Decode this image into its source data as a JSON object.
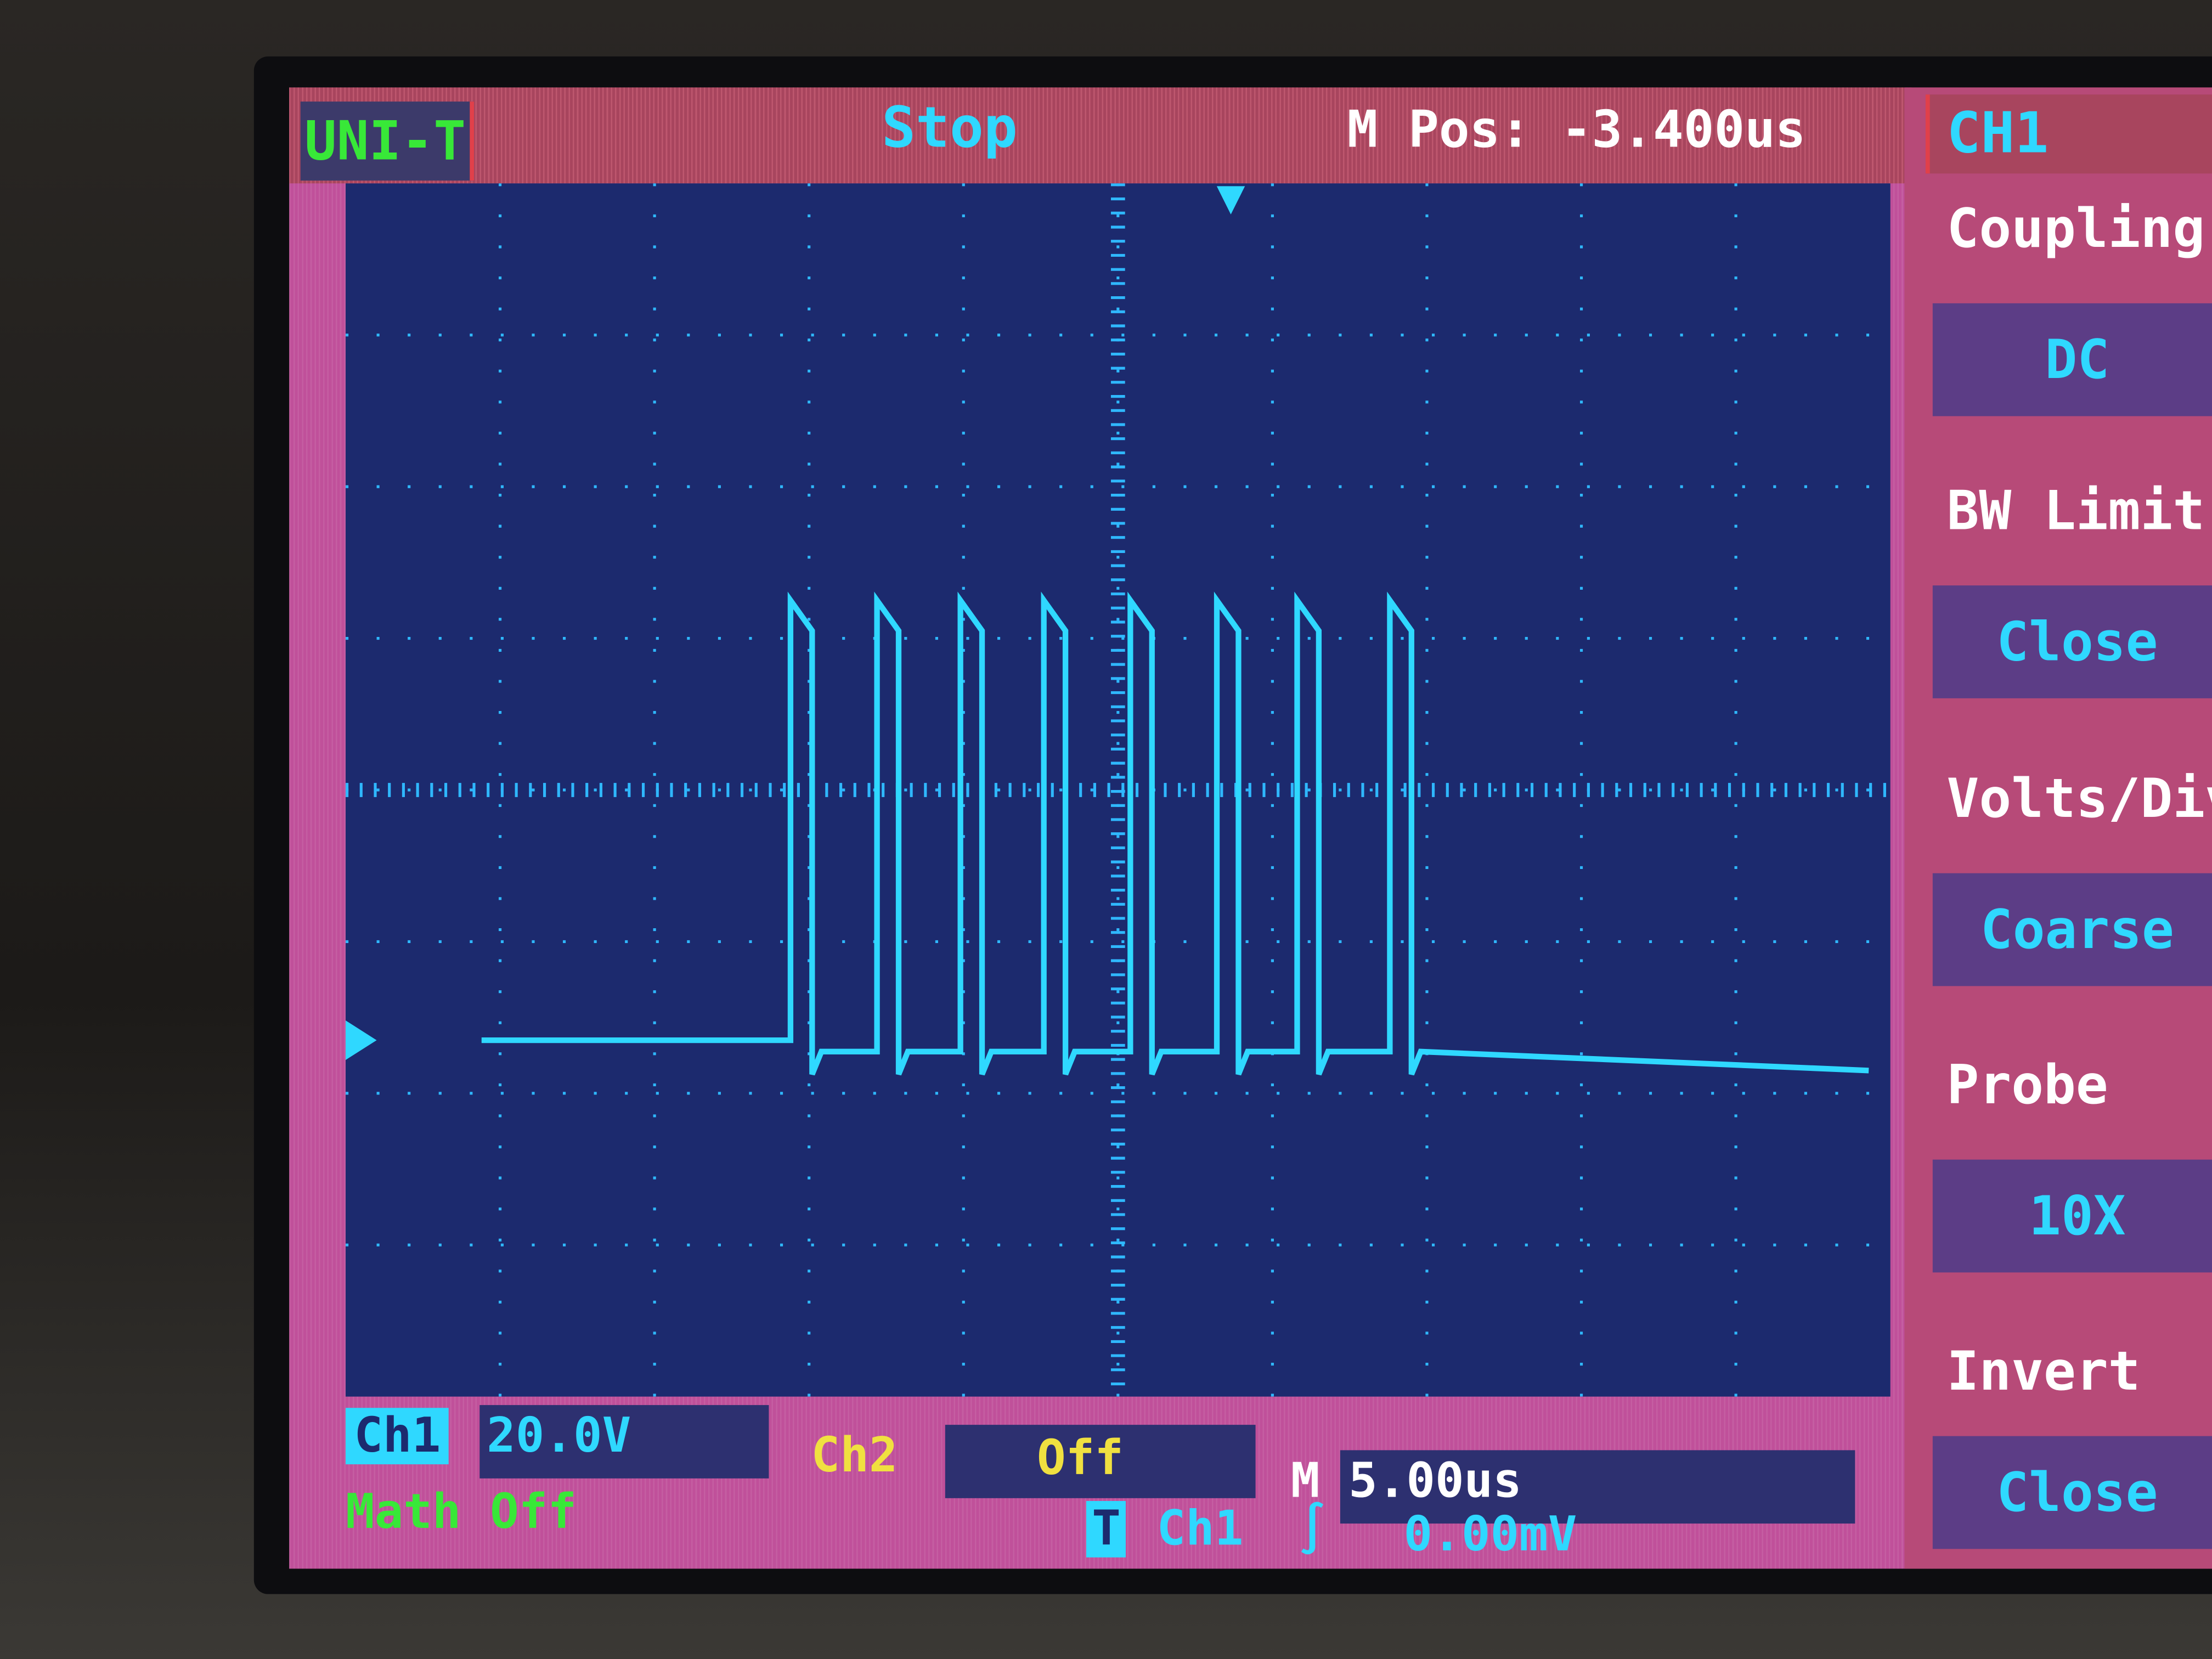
{
  "top_bar": {
    "brand": "UNI-T",
    "run_state": "Stop",
    "main_position": "M Pos: -3.400us"
  },
  "menu": {
    "title": "CH1",
    "items": [
      {
        "label": "Coupling",
        "value": "DC"
      },
      {
        "label": "BW Limit",
        "value": "Close"
      },
      {
        "label": "Volts/Div",
        "value": "Coarse"
      },
      {
        "label": "Probe",
        "value": "10X"
      },
      {
        "label": "Invert",
        "value": "Close"
      }
    ]
  },
  "status": {
    "ch1_label": "Ch1",
    "ch1_scale": "20.0V",
    "ch2_label": "Ch2",
    "ch2_scale": "Off",
    "timebase": "M 5.00us",
    "math": "Math Off",
    "trigger_icon": "T",
    "trigger_source": "Ch1",
    "trigger_slope": "rising-edge-icon",
    "trigger_level": "0.00mV"
  },
  "colors": {
    "ch1": "#2fd8ff",
    "ch2": "#f0e040",
    "math": "#38e838",
    "grid_bg": "#1c2a6e",
    "frame": "#c0509a"
  },
  "chart_data": {
    "type": "line",
    "divisions_x": 10,
    "divisions_y": 8,
    "time_per_div_us": 5,
    "volts_per_div": 20,
    "series": [
      {
        "channel": "CH1",
        "pulses_rise_us": [
          14.4,
          17.2,
          19.9,
          22.6,
          25.4,
          28.2,
          30.8,
          33.8
        ],
        "pulse_width_us": 0.7,
        "high_v": 58,
        "low_v_between": -1.5,
        "baseline_start_us": 4.4,
        "baseline_before_v": 0,
        "baseline_after_v": -4,
        "end_us": 49.3
      }
    ]
  }
}
